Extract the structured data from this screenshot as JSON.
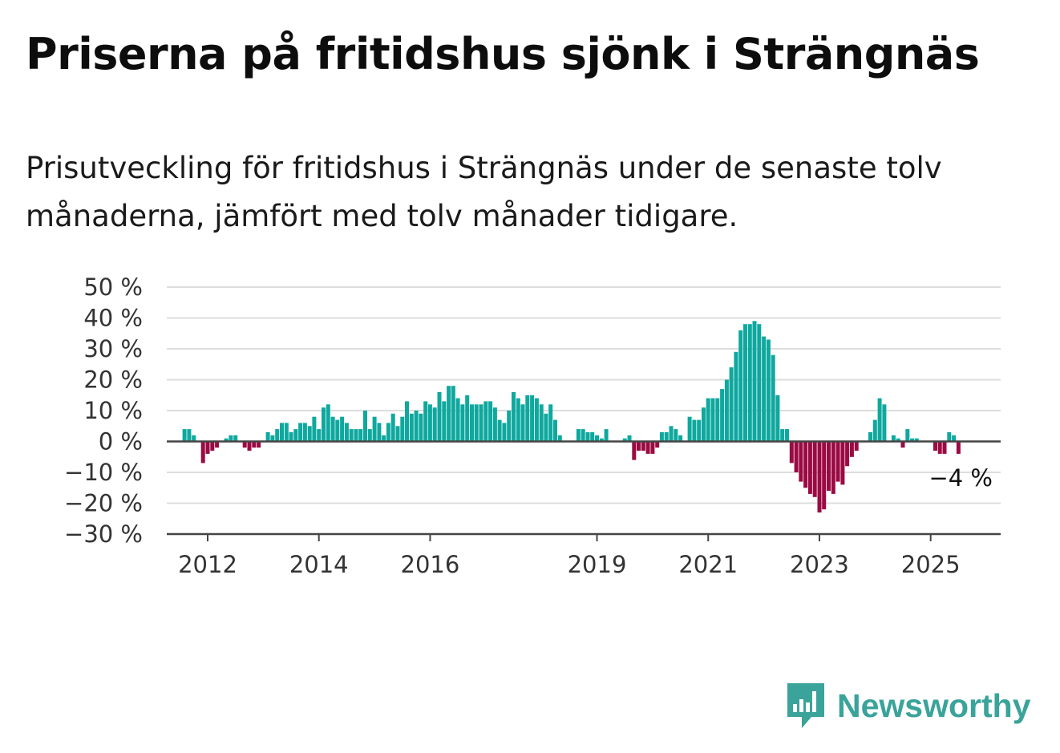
{
  "title": "Priserna på fritidshus sjönk i Strängnäs",
  "subtitle": "Prisutveckling för fritidshus i Strängnäs under de senaste tolv månaderna, jämfört med tolv månader tidigare.",
  "brand": {
    "name": "Newsworthy",
    "icon": "newsworthy-logo-icon",
    "color": "#3aa39a"
  },
  "colors": {
    "positive": "#0fa89e",
    "negative": "#9b0a43",
    "grid": "#dddddd",
    "axis": "#444444"
  },
  "chart_data": {
    "type": "bar",
    "title": "",
    "xlabel": "",
    "ylabel": "",
    "ylim": [
      -30,
      50
    ],
    "yticks": [
      50,
      40,
      30,
      20,
      10,
      0,
      -10,
      -20,
      -30
    ],
    "ytick_labels": [
      "50 %",
      "40 %",
      "30 %",
      "20 %",
      "10 %",
      "0 %",
      "−10 %",
      "−20 %",
      "−30 %"
    ],
    "xticks": [
      2012,
      2014,
      2016,
      2019,
      2021,
      2023,
      2025
    ],
    "x_start": "2011-08",
    "grid": true,
    "end_label": "−4 %",
    "values": [
      4,
      4,
      2,
      null,
      -7,
      -4,
      -3,
      -2,
      0,
      1,
      2,
      2,
      null,
      -2,
      -3,
      -2,
      -2,
      null,
      3,
      2,
      4,
      6,
      6,
      3,
      4,
      6,
      6,
      5,
      8,
      4,
      11,
      12,
      8,
      7,
      8,
      6,
      4,
      4,
      4,
      10,
      4,
      8,
      6,
      2,
      6,
      9,
      5,
      8,
      13,
      9,
      10,
      9,
      13,
      12,
      11,
      16,
      13,
      18,
      18,
      14,
      12,
      15,
      12,
      12,
      12,
      13,
      13,
      11,
      7,
      6,
      10,
      16,
      14,
      12,
      15,
      15,
      14,
      12,
      9,
      12,
      7,
      2,
      null,
      null,
      null,
      4,
      4,
      3,
      3,
      2,
      1,
      4,
      null,
      null,
      null,
      1,
      2,
      -6,
      -3,
      -3,
      -4,
      -4,
      -2,
      3,
      3,
      5,
      4,
      2,
      null,
      8,
      7,
      7,
      11,
      14,
      14,
      14,
      17,
      20,
      24,
      29,
      36,
      38,
      38,
      39,
      38,
      34,
      33,
      28,
      15,
      4,
      4,
      -7,
      -10,
      -13,
      -15,
      -17,
      -18,
      -23,
      -22,
      -16,
      -17,
      -13,
      -14,
      -8,
      -5,
      -3,
      null,
      null,
      3,
      7,
      14,
      12,
      null,
      2,
      1,
      -2,
      4,
      1,
      1,
      null,
      null,
      null,
      -3,
      -4,
      -4,
      3,
      2,
      -4
    ]
  }
}
